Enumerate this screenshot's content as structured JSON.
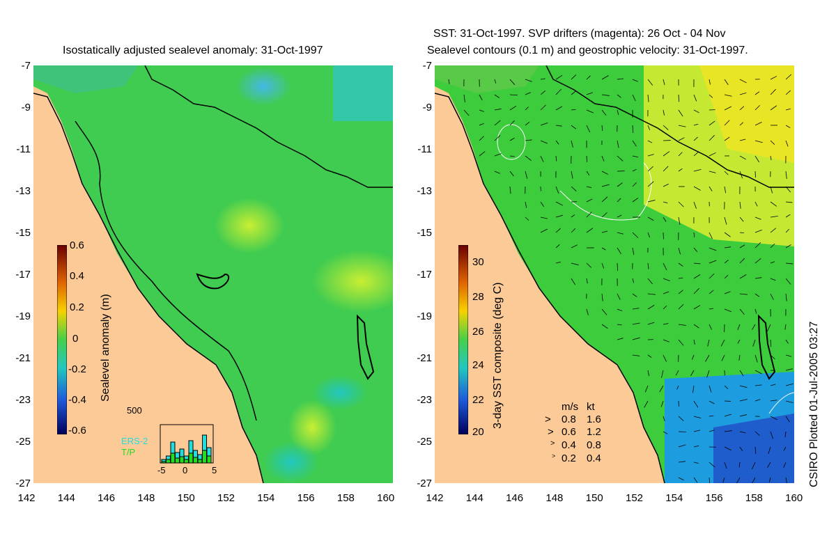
{
  "titles": {
    "left": "Isostatically adjusted sealevel anomaly: 31-Oct-1997",
    "right_line1": "SST: 31-Oct-1997. SVP drifters (magenta): 26 Oct - 04 Nov",
    "right_line2": "Sealevel contours (0.1 m) and geostrophic velocity: 31-Oct-1997."
  },
  "axes": {
    "y_ticks": [
      "-7",
      "-9",
      "-11",
      "-13",
      "-15",
      "-17",
      "-19",
      "-21",
      "-23",
      "-25",
      "-27"
    ],
    "x_ticks": [
      "142",
      "144",
      "146",
      "148",
      "150",
      "152",
      "154",
      "156",
      "158",
      "160"
    ]
  },
  "left_colorbar": {
    "label": "Sealevel anomaly (m)",
    "ticks": [
      "0.6",
      "0.4",
      "0.2",
      "0",
      "-0.2",
      "-0.4",
      "-0.6"
    ]
  },
  "right_colorbar": {
    "label": "3-day SST composite (deg C)",
    "ticks": [
      "30",
      "28",
      "26",
      "24",
      "22",
      "20"
    ]
  },
  "inset": {
    "ymax": "500",
    "x_ticks": [
      "-5",
      "0",
      "5"
    ],
    "ers2": "ERS-2",
    "tp": "T/P",
    "ers2_color": "#22dddd",
    "tp_color": "#22dd22"
  },
  "speed_legend": {
    "header_ms": "m/s",
    "header_kt": "kt",
    "rows": [
      {
        "ms": "0.8",
        "kt": "1.6"
      },
      {
        "ms": "0.6",
        "kt": "1.2"
      },
      {
        "ms": "0.4",
        "kt": "0.8"
      },
      {
        "ms": "0.2",
        "kt": "0.4"
      }
    ]
  },
  "credit": "CSIRO Plotted 01-Jul-2005 03:27",
  "colors": {
    "land": "#fcca96",
    "ocean_green": "#3ccc3c",
    "coast": "#000000"
  }
}
